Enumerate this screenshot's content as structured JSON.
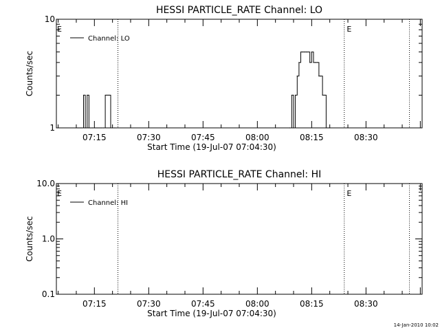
{
  "chart_data": [
    {
      "type": "line",
      "title": "HESSI PARTICLE_RATE Channel: LO",
      "xlabel": "Start Time (19-Jul-07 07:04:30)",
      "ylabel": "Counts/sec",
      "yscale": "log",
      "ylim": [
        1,
        10
      ],
      "ytick_labels": [
        "1",
        "10"
      ],
      "xlim": [
        "07:04:30",
        "08:45:30"
      ],
      "xtick_labels": [
        "07:15",
        "07:30",
        "07:45",
        "08:00",
        "08:15",
        "08:30"
      ],
      "legend": {
        "label": "Channel: LO",
        "placement": "top-left"
      },
      "vlines": [
        "07:21:30",
        "08:24:00",
        "08:42:00"
      ],
      "markers": [
        {
          "label": "E",
          "x": "07:04:30"
        },
        {
          "label": "E",
          "x": "08:24:30"
        }
      ],
      "series": [
        {
          "x": [
            "07:10:00",
            "07:10:30",
            "07:11:00",
            "07:11:30",
            "07:12:00",
            "07:12:30",
            "07:13:00",
            "07:13:30",
            "07:14:00",
            "07:14:30",
            "07:15:00",
            "07:15:30",
            "07:16:00",
            "07:16:30",
            "07:17:00",
            "07:17:30",
            "07:18:00",
            "07:18:30",
            "07:19:00",
            "07:19:30",
            "07:20:00",
            "07:20:30",
            "07:21:00",
            "08:09:00",
            "08:09:30",
            "08:10:00",
            "08:10:30",
            "08:11:00",
            "08:11:30",
            "08:12:00",
            "08:12:30",
            "08:13:00",
            "08:13:30",
            "08:14:00",
            "08:14:30",
            "08:15:00",
            "08:15:30",
            "08:16:00",
            "08:16:30",
            "08:17:00",
            "08:17:30",
            "08:18:00",
            "08:18:30",
            "08:19:00",
            "08:19:30",
            "08:20:00"
          ],
          "y": [
            1,
            1,
            1,
            1,
            2,
            1,
            2,
            1,
            1,
            1,
            1,
            1,
            1,
            1,
            1,
            1,
            2,
            2,
            2,
            1,
            1,
            1,
            1,
            1,
            2,
            1,
            2,
            3,
            4,
            5,
            5,
            5,
            5,
            5,
            4,
            5,
            4,
            4,
            4,
            3,
            3,
            2,
            2,
            1,
            1,
            1
          ]
        }
      ]
    },
    {
      "type": "line",
      "title": "HESSI PARTICLE_RATE Channel: HI",
      "xlabel": "Start Time (19-Jul-07 07:04:30)",
      "ylabel": "Counts/sec",
      "yscale": "log",
      "ylim": [
        0.1,
        10
      ],
      "ytick_labels": [
        "0.1",
        "1.0",
        "10.0"
      ],
      "xlim": [
        "07:04:30",
        "08:45:30"
      ],
      "xtick_labels": [
        "07:15",
        "07:30",
        "07:45",
        "08:00",
        "08:15",
        "08:30"
      ],
      "legend": {
        "label": "Channel: HI",
        "placement": "top-left"
      },
      "vlines": [
        "07:21:30",
        "08:24:00",
        "08:42:00"
      ],
      "markers": [
        {
          "label": "E",
          "x": "07:04:30"
        },
        {
          "label": "E",
          "x": "08:24:30"
        }
      ],
      "series": []
    }
  ],
  "footer": {
    "timestamp": "14-Jan-2010 10:02"
  },
  "colors": {
    "line": "#000000",
    "background": "#ffffff"
  }
}
